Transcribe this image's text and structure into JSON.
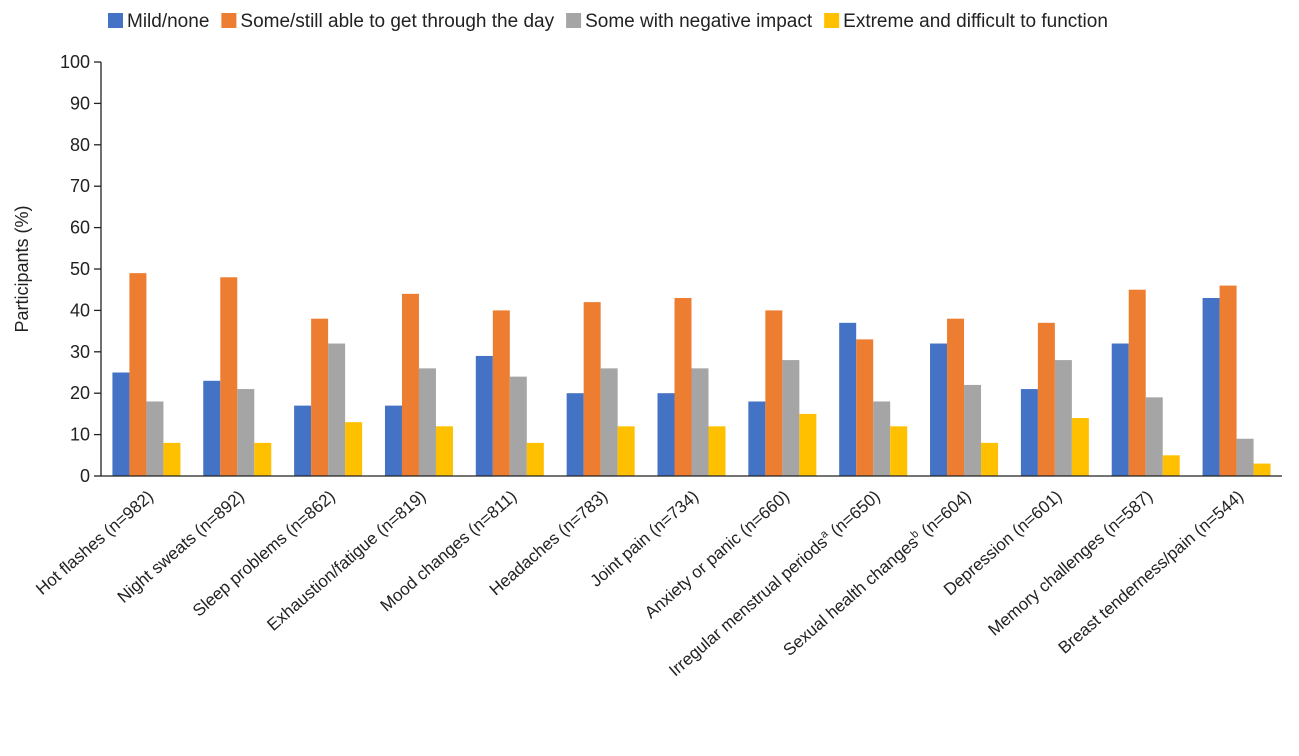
{
  "chart_data": {
    "type": "bar",
    "title": "",
    "xlabel": "",
    "ylabel": "Participants (%)",
    "ylim": [
      0,
      100
    ],
    "yticks": [
      0,
      10,
      20,
      30,
      40,
      50,
      60,
      70,
      80,
      90,
      100
    ],
    "grid": false,
    "legend_position": "top",
    "categories": [
      {
        "label": "Hot flashes (n=982)",
        "sup": ""
      },
      {
        "label": "Night sweats (n=892)",
        "sup": ""
      },
      {
        "label": "Sleep problems (n=862)",
        "sup": ""
      },
      {
        "label": "Exhaustion/fatigue (n=819)",
        "sup": ""
      },
      {
        "label": "Mood changes (n=811)",
        "sup": ""
      },
      {
        "label": "Headaches (n=783)",
        "sup": ""
      },
      {
        "label": "Joint pain (n=734)",
        "sup": ""
      },
      {
        "label": "Anxiety or panic (n=660)",
        "sup": ""
      },
      {
        "label": "Irregular menstrual periods",
        "sup": "a",
        "suffix": " (n=650)"
      },
      {
        "label": "Sexual health changes",
        "sup": "b",
        "suffix": " (n=604)"
      },
      {
        "label": "Depression (n=601)",
        "sup": ""
      },
      {
        "label": "Memory challenges (n=587)",
        "sup": ""
      },
      {
        "label": "Breast tenderness/pain (n=544)",
        "sup": ""
      }
    ],
    "series": [
      {
        "name": "Mild/none",
        "color": "#4472C4",
        "values": [
          25,
          23,
          17,
          17,
          29,
          20,
          20,
          18,
          37,
          32,
          21,
          32,
          43
        ]
      },
      {
        "name": "Some/still able to get through the day",
        "color": "#ED7D31",
        "values": [
          49,
          48,
          38,
          44,
          40,
          42,
          43,
          40,
          33,
          38,
          37,
          45,
          46
        ]
      },
      {
        "name": "Some with negative impact",
        "color": "#A5A5A5",
        "values": [
          18,
          21,
          32,
          26,
          24,
          26,
          26,
          28,
          18,
          22,
          28,
          19,
          9
        ]
      },
      {
        "name": "Extreme and difficult to function",
        "color": "#FFC000",
        "values": [
          8,
          8,
          13,
          12,
          8,
          12,
          12,
          15,
          12,
          8,
          14,
          5,
          3
        ]
      }
    ]
  }
}
